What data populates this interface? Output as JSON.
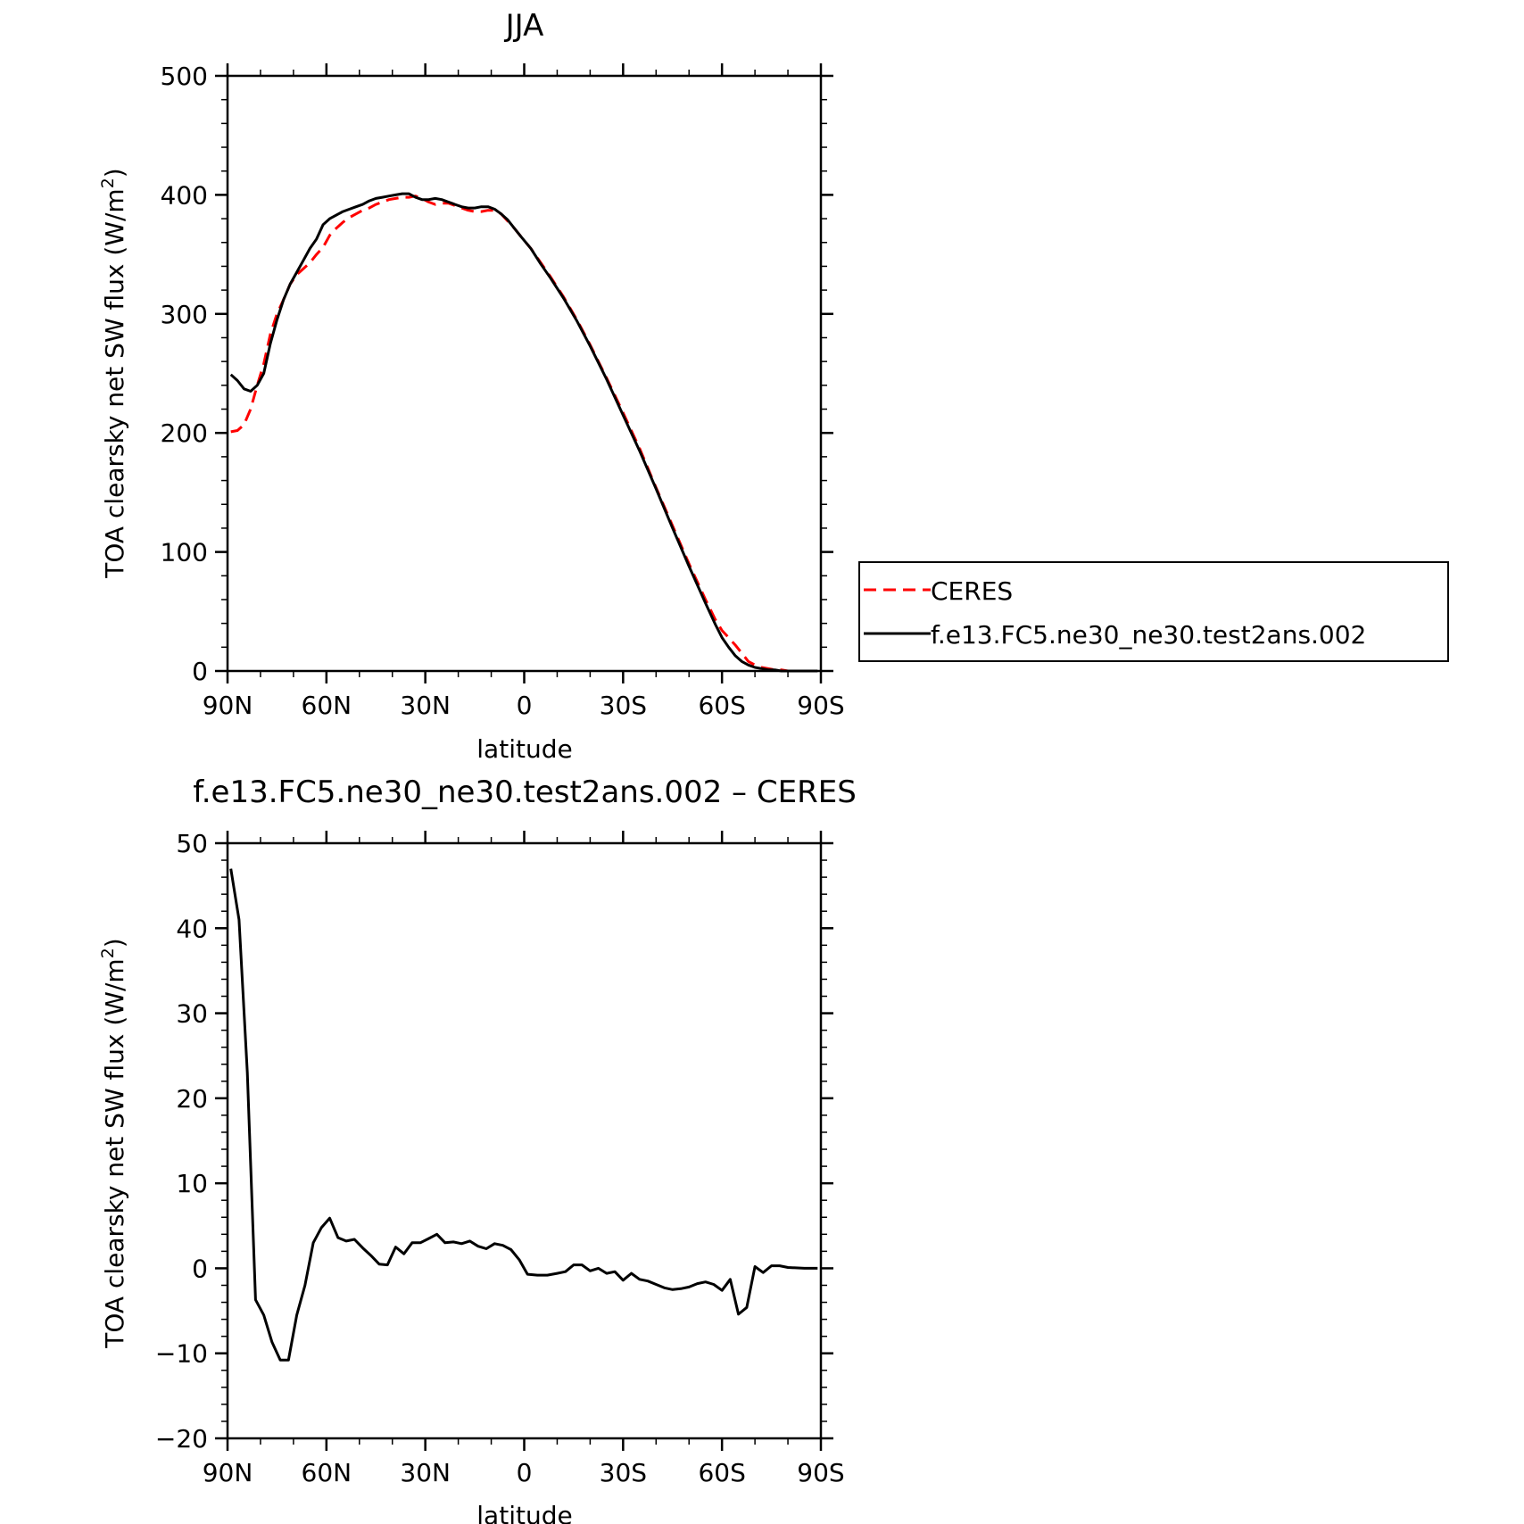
{
  "chart_data": [
    {
      "type": "line",
      "title": "JJA",
      "xlabel": "latitude",
      "ylabel": "TOA clearsky net SW flux (W/m",
      "ylabel_sup": "2",
      "ylabel_tail": ")",
      "xlim": [
        90,
        -90
      ],
      "ylim": [
        0,
        500
      ],
      "x_ticks": [
        90,
        60,
        30,
        0,
        -30,
        -60,
        -90
      ],
      "x_tick_labels": [
        "90N",
        "60N",
        "30N",
        "0",
        "30S",
        "60S",
        "90S"
      ],
      "y_ticks": [
        0,
        100,
        200,
        300,
        400,
        500
      ],
      "y_tick_labels": [
        "0",
        "100",
        "200",
        "300",
        "400",
        "500"
      ],
      "legend_position": "right",
      "series": [
        {
          "name": "CERES",
          "color": "#ff0000",
          "dash": "dashed",
          "x": [
            89,
            87,
            85,
            83,
            81,
            79,
            77,
            75,
            73,
            71,
            69,
            67,
            65,
            63,
            61,
            59,
            57,
            55,
            53,
            51,
            49,
            47,
            45,
            43,
            41,
            39,
            37,
            35,
            33,
            31,
            29,
            27,
            25,
            23,
            21,
            19,
            17,
            15,
            13,
            11,
            9,
            7,
            5,
            3,
            1,
            -2,
            -5,
            -8,
            -12,
            -16,
            -20,
            -25,
            -30,
            -35,
            -40,
            -45,
            -50,
            -55,
            -58,
            -60,
            -62,
            -64,
            -66,
            -68,
            -70,
            -72,
            -74,
            -76,
            -78,
            -80,
            -85,
            -89
          ],
          "y": [
            201,
            202,
            207,
            220,
            240,
            258,
            283,
            300,
            312,
            325,
            333,
            338,
            343,
            350,
            356,
            366,
            372,
            377,
            381,
            384,
            387,
            389,
            392,
            394,
            396,
            397,
            398,
            398,
            399,
            397,
            394,
            392,
            393,
            393,
            391,
            389,
            387,
            386,
            386,
            387,
            387,
            384,
            378,
            372,
            365,
            355,
            343,
            331,
            314,
            295,
            274,
            246,
            217,
            187,
            154,
            122,
            90,
            60,
            43,
            34,
            28,
            22,
            15,
            8,
            5,
            3,
            2,
            1,
            1,
            0,
            0,
            0
          ]
        },
        {
          "name": "f.e13.FC5.ne30_ne30.test2ans.002",
          "color": "#000000",
          "dash": "solid",
          "x": [
            89,
            87,
            85,
            83,
            81,
            79,
            77,
            75,
            73,
            71,
            69,
            67,
            65,
            63,
            61,
            59,
            57,
            55,
            53,
            51,
            49,
            47,
            45,
            43,
            41,
            39,
            37,
            35,
            33,
            31,
            29,
            27,
            25,
            23,
            21,
            19,
            17,
            15,
            13,
            11,
            9,
            7,
            5,
            3,
            1,
            -2,
            -5,
            -8,
            -12,
            -16,
            -20,
            -25,
            -30,
            -35,
            -40,
            -45,
            -50,
            -55,
            -58,
            -60,
            -62,
            -64,
            -66,
            -68,
            -70,
            -72,
            -74,
            -76,
            -78,
            -80,
            -85,
            -89
          ],
          "y": [
            249,
            244,
            237,
            235,
            240,
            250,
            275,
            295,
            312,
            325,
            335,
            345,
            355,
            363,
            375,
            380,
            383,
            386,
            388,
            390,
            392,
            395,
            397,
            398,
            399,
            400,
            401,
            401,
            398,
            396,
            396,
            397,
            396,
            394,
            392,
            390,
            389,
            389,
            390,
            390,
            388,
            384,
            379,
            372,
            365,
            355,
            342,
            330,
            313,
            294,
            273,
            245,
            215,
            185,
            153,
            120,
            88,
            57,
            39,
            28,
            20,
            13,
            8,
            5,
            3,
            2,
            1,
            1,
            0,
            0,
            0,
            0
          ]
        }
      ]
    },
    {
      "type": "line",
      "title": "f.e13.FC5.ne30_ne30.test2ans.002 – CERES",
      "xlabel": "latitude",
      "ylabel": "TOA clearsky net SW flux (W/m",
      "ylabel_sup": "2",
      "ylabel_tail": ")",
      "xlim": [
        90,
        -90
      ],
      "ylim": [
        -20,
        50
      ],
      "x_ticks": [
        90,
        60,
        30,
        0,
        -30,
        -60,
        -90
      ],
      "x_tick_labels": [
        "90N",
        "60N",
        "30N",
        "0",
        "30S",
        "60S",
        "90S"
      ],
      "y_ticks": [
        -20,
        -10,
        0,
        10,
        20,
        30,
        40,
        50
      ],
      "y_tick_labels": [
        "−20",
        "−10",
        "0",
        "10",
        "20",
        "30",
        "40",
        "50"
      ],
      "series": [
        {
          "color": "#000000",
          "dash": "solid",
          "x": [
            89,
            86.5,
            84,
            81.5,
            79,
            76.5,
            74,
            71.5,
            69,
            66.5,
            64,
            61.5,
            59,
            56.5,
            54,
            51.5,
            49,
            46.5,
            44,
            41.5,
            39,
            36.5,
            34,
            31.5,
            29,
            26.5,
            24,
            21.5,
            19,
            16.5,
            14,
            11.5,
            9,
            6.5,
            4,
            1.5,
            -1,
            -4,
            -7,
            -10,
            -12.5,
            -15,
            -17.5,
            -20,
            -22.5,
            -25,
            -27.5,
            -30,
            -32.5,
            -35,
            -37.5,
            -40,
            -42.5,
            -45,
            -47.5,
            -50,
            -52.5,
            -55,
            -57.5,
            -60,
            -62.5,
            -65,
            -67.5,
            -70,
            -72.5,
            -75,
            -77.5,
            -80,
            -85,
            -89
          ],
          "y": [
            47,
            41,
            23,
            -3.7,
            -5.5,
            -8.7,
            -10.8,
            -10.8,
            -5.5,
            -2.0,
            3.0,
            4.8,
            5.9,
            3.6,
            3.2,
            3.4,
            2.4,
            1.5,
            0.5,
            0.4,
            2.5,
            1.7,
            3.0,
            3.0,
            3.5,
            4.0,
            3.0,
            3.1,
            2.9,
            3.2,
            2.6,
            2.3,
            2.9,
            2.7,
            2.2,
            1.0,
            -0.7,
            -0.8,
            -0.8,
            -0.6,
            -0.4,
            0.4,
            0.4,
            -0.3,
            0.0,
            -0.6,
            -0.4,
            -1.4,
            -0.6,
            -1.3,
            -1.5,
            -1.9,
            -2.3,
            -2.5,
            -2.4,
            -2.2,
            -1.8,
            -1.6,
            -1.9,
            -2.6,
            -1.3,
            -5.4,
            -4.6,
            0.2,
            -0.5,
            0.3,
            0.3,
            0.1,
            0.0,
            0.0
          ]
        }
      ]
    }
  ]
}
